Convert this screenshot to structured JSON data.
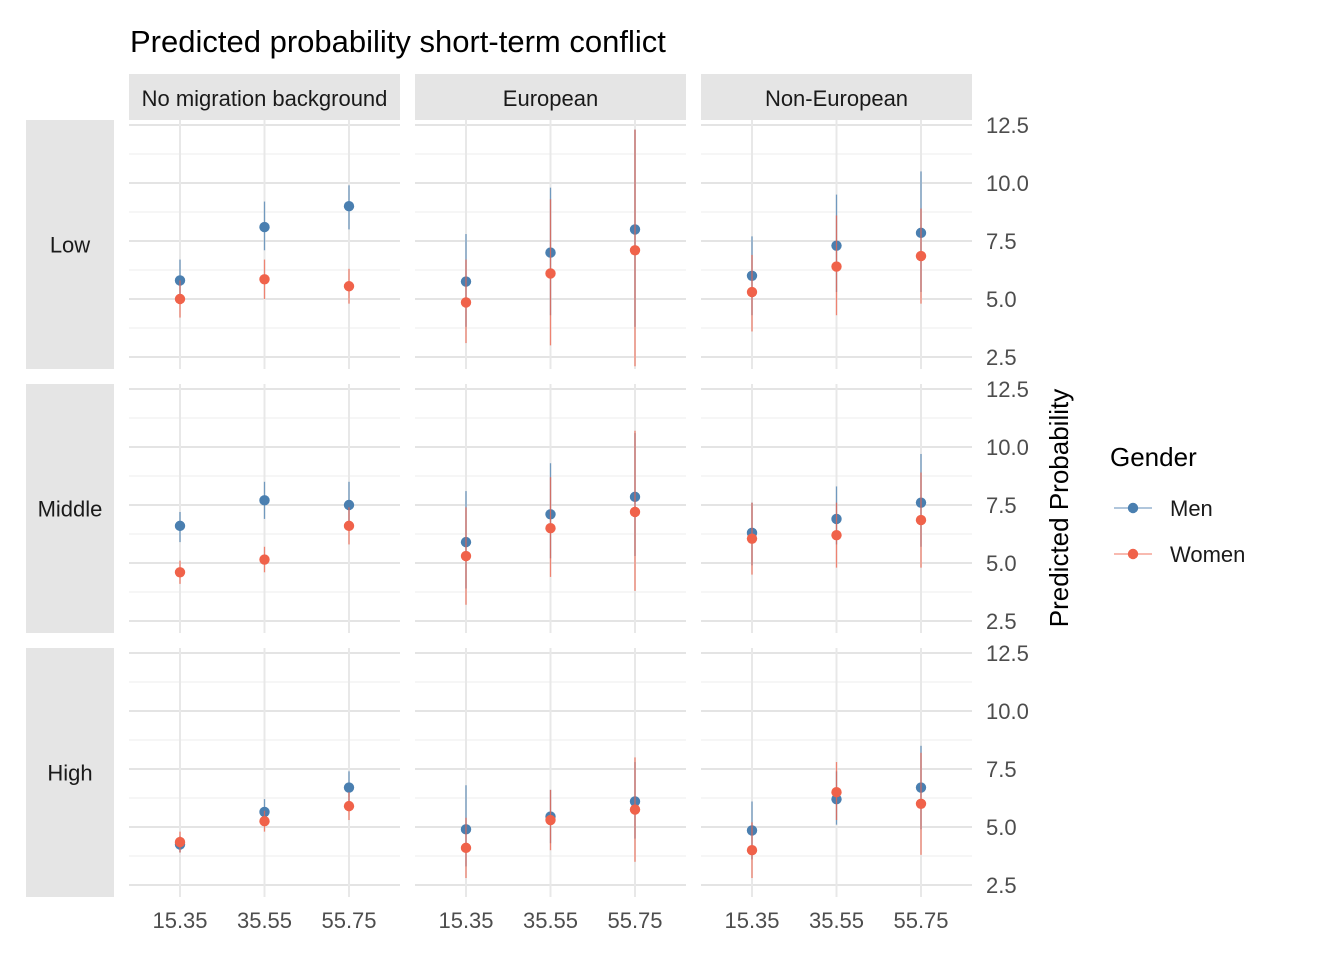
{
  "chart_data": {
    "type": "scatter",
    "title": "Predicted probability short-term conflict",
    "ylabel": "Predicted Probability",
    "xlabel": "",
    "x_ticks": [
      "15.35",
      "35.55",
      "55.75"
    ],
    "y_ticks": [
      "2.5",
      "5.0",
      "7.5",
      "10.0",
      "12.5"
    ],
    "ylim": [
      2.0,
      12.5
    ],
    "grid": true,
    "columns": [
      "No migration background",
      "European",
      "Non-European"
    ],
    "rows": [
      "Low",
      "Middle",
      "High"
    ],
    "legend": {
      "title": "Gender",
      "position": "right",
      "entries": [
        {
          "name": "Men",
          "color": "#4a7fb0"
        },
        {
          "name": "Women",
          "color": "#f0624a"
        }
      ]
    },
    "series": [
      {
        "name": "Men",
        "color": "#4a7fb0",
        "panels": [
          {
            "row": "Low",
            "column": "No migration background",
            "x": [
              "15.35",
              "35.55",
              "55.75"
            ],
            "y": [
              5.8,
              8.1,
              9.0
            ],
            "lower": [
              4.9,
              7.1,
              8.0
            ],
            "upper": [
              6.7,
              9.2,
              9.9
            ]
          },
          {
            "row": "Low",
            "column": "European",
            "x": [
              "15.35",
              "35.55",
              "55.75"
            ],
            "y": [
              5.75,
              7.0,
              8.0
            ],
            "lower": [
              3.8,
              4.3,
              3.8
            ],
            "upper": [
              7.8,
              9.8,
              12.3
            ]
          },
          {
            "row": "Low",
            "column": "Non-European",
            "x": [
              "15.35",
              "35.55",
              "55.75"
            ],
            "y": [
              6.0,
              7.3,
              7.85
            ],
            "lower": [
              4.3,
              5.3,
              5.3
            ],
            "upper": [
              7.7,
              9.5,
              10.5
            ]
          },
          {
            "row": "Middle",
            "column": "No migration background",
            "x": [
              "15.35",
              "35.55",
              "55.75"
            ],
            "y": [
              6.6,
              7.7,
              7.5
            ],
            "lower": [
              5.9,
              6.9,
              6.6
            ],
            "upper": [
              7.2,
              8.5,
              8.5
            ]
          },
          {
            "row": "Middle",
            "column": "European",
            "x": [
              "15.35",
              "35.55",
              "55.75"
            ],
            "y": [
              5.9,
              7.1,
              7.85
            ],
            "lower": [
              3.9,
              5.2,
              5.3
            ],
            "upper": [
              8.1,
              9.3,
              10.6
            ]
          },
          {
            "row": "Middle",
            "column": "Non-European",
            "x": [
              "15.35",
              "35.55",
              "55.75"
            ],
            "y": [
              6.3,
              6.9,
              7.6
            ],
            "lower": [
              4.9,
              5.8,
              5.7
            ],
            "upper": [
              7.6,
              8.3,
              9.7
            ]
          },
          {
            "row": "High",
            "column": "No migration background",
            "x": [
              "15.35",
              "35.55",
              "55.75"
            ],
            "y": [
              4.25,
              5.65,
              6.7
            ],
            "lower": [
              3.9,
              5.1,
              5.9
            ],
            "upper": [
              4.6,
              6.2,
              7.4
            ]
          },
          {
            "row": "High",
            "column": "European",
            "x": [
              "15.35",
              "35.55",
              "55.75"
            ],
            "y": [
              4.9,
              5.45,
              6.1
            ],
            "lower": [
              3.3,
              4.3,
              4.5
            ],
            "upper": [
              6.8,
              6.6,
              7.8
            ]
          },
          {
            "row": "High",
            "column": "Non-European",
            "x": [
              "15.35",
              "35.55",
              "55.75"
            ],
            "y": [
              4.85,
              6.2,
              6.7
            ],
            "lower": [
              3.6,
              5.1,
              4.9
            ],
            "upper": [
              6.1,
              7.4,
              8.5
            ]
          }
        ]
      },
      {
        "name": "Women",
        "color": "#f0624a",
        "panels": [
          {
            "row": "Low",
            "column": "No migration background",
            "x": [
              "15.35",
              "35.55",
              "55.75"
            ],
            "y": [
              5.0,
              5.85,
              5.55
            ],
            "lower": [
              4.2,
              5.0,
              4.8
            ],
            "upper": [
              5.8,
              6.7,
              6.3
            ]
          },
          {
            "row": "Low",
            "column": "European",
            "x": [
              "15.35",
              "35.55",
              "55.75"
            ],
            "y": [
              4.85,
              6.1,
              7.1
            ],
            "lower": [
              3.1,
              3.0,
              2.1
            ],
            "upper": [
              6.7,
              9.3,
              12.3
            ]
          },
          {
            "row": "Low",
            "column": "Non-European",
            "x": [
              "15.35",
              "35.55",
              "55.75"
            ],
            "y": [
              5.3,
              6.4,
              6.85
            ],
            "lower": [
              3.6,
              4.3,
              4.8
            ],
            "upper": [
              6.9,
              8.6,
              8.9
            ]
          },
          {
            "row": "Middle",
            "column": "No migration background",
            "x": [
              "15.35",
              "35.55",
              "55.75"
            ],
            "y": [
              4.6,
              5.15,
              6.6
            ],
            "lower": [
              4.1,
              4.6,
              5.8
            ],
            "upper": [
              5.1,
              5.7,
              7.4
            ]
          },
          {
            "row": "Middle",
            "column": "European",
            "x": [
              "15.35",
              "35.55",
              "55.75"
            ],
            "y": [
              5.3,
              6.5,
              7.2
            ],
            "lower": [
              3.2,
              4.4,
              3.8
            ],
            "upper": [
              7.4,
              8.7,
              10.7
            ]
          },
          {
            "row": "Middle",
            "column": "Non-European",
            "x": [
              "15.35",
              "35.55",
              "55.75"
            ],
            "y": [
              6.05,
              6.2,
              6.85
            ],
            "lower": [
              4.5,
              4.8,
              4.8
            ],
            "upper": [
              7.6,
              7.6,
              8.9
            ]
          },
          {
            "row": "High",
            "column": "No migration background",
            "x": [
              "15.35",
              "35.55",
              "55.75"
            ],
            "y": [
              4.35,
              5.25,
              5.9
            ],
            "lower": [
              3.9,
              4.8,
              5.3
            ],
            "upper": [
              4.8,
              5.7,
              6.5
            ]
          },
          {
            "row": "High",
            "column": "European",
            "x": [
              "15.35",
              "35.55",
              "55.75"
            ],
            "y": [
              4.1,
              5.3,
              5.75
            ],
            "lower": [
              2.8,
              4.0,
              3.5
            ],
            "upper": [
              5.4,
              6.6,
              8.0
            ]
          },
          {
            "row": "High",
            "column": "Non-European",
            "x": [
              "15.35",
              "35.55",
              "55.75"
            ],
            "y": [
              4.0,
              6.5,
              6.0
            ],
            "lower": [
              2.8,
              5.3,
              3.8
            ],
            "upper": [
              5.2,
              7.8,
              8.2
            ]
          }
        ]
      }
    ]
  }
}
